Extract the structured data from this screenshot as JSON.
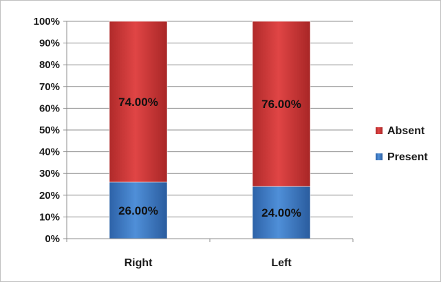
{
  "chart_data": {
    "type": "bar",
    "stacked": true,
    "percent_stacked": true,
    "categories": [
      "Right",
      "Left"
    ],
    "series": [
      {
        "name": "Present",
        "values": [
          26.0,
          24.0
        ],
        "labels": [
          "26.00%",
          "24.00%"
        ],
        "color": "#3a78c4"
      },
      {
        "name": "Absent",
        "values": [
          74.0,
          76.0
        ],
        "labels": [
          "74.00%",
          "76.00%"
        ],
        "color": "#cc3333"
      }
    ],
    "y_ticks": [
      "0%",
      "10%",
      "20%",
      "30%",
      "40%",
      "50%",
      "60%",
      "70%",
      "80%",
      "90%",
      "100%"
    ],
    "ylim": [
      0,
      100
    ],
    "grid": true,
    "legend_position": "right",
    "legend_order": [
      "Absent",
      "Present"
    ],
    "title": "",
    "xlabel": "",
    "ylabel": ""
  }
}
